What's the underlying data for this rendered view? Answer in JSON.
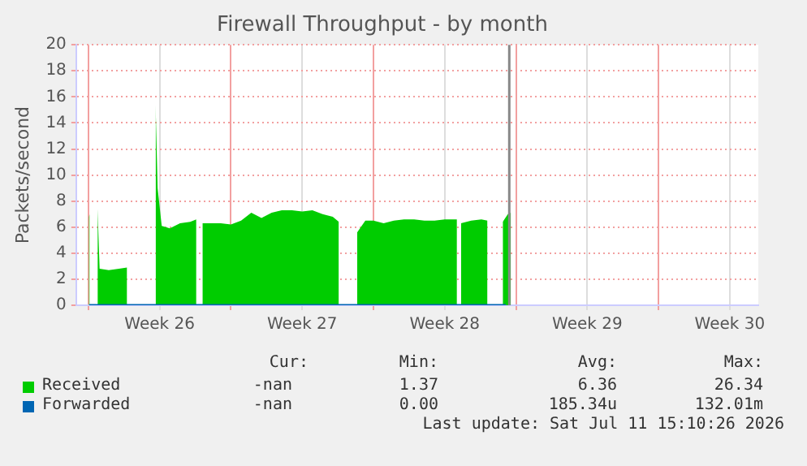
{
  "chart_data": {
    "type": "area",
    "title": "Firewall Throughput - by month",
    "ylabel": "Packets/second",
    "xlim": [
      "2026-06-21T09:36",
      "2026-07-24T21:36"
    ],
    "xticks": [
      {
        "value": "2026-06-22",
        "label": null
      },
      {
        "value": "2026-06-25T12:00",
        "label": "Week 26"
      },
      {
        "value": "2026-06-29",
        "label": null
      },
      {
        "value": "2026-07-02T12:00",
        "label": "Week 27"
      },
      {
        "value": "2026-07-06",
        "label": null
      },
      {
        "value": "2026-07-09T12:00",
        "label": "Week 28"
      },
      {
        "value": "2026-07-13",
        "label": null
      },
      {
        "value": "2026-07-16T12:00",
        "label": "Week 29"
      },
      {
        "value": "2026-07-20",
        "label": null
      },
      {
        "value": "2026-07-23T12:00",
        "label": "Week 30"
      }
    ],
    "ylim": [
      0,
      20
    ],
    "yticks": [
      0,
      2,
      4,
      6,
      8,
      10,
      12,
      14,
      16,
      18,
      20
    ],
    "grid": true,
    "legend": "bottom",
    "marker": "none",
    "ref_lines": [
      {
        "axis": "x",
        "value": "2026-07-12T16:05",
        "color": "#888888"
      }
    ],
    "series": [
      {
        "name": "Received",
        "color": "#00cc00",
        "x": [
          "2026-06-22T00:30",
          "2026-06-22T01:30",
          "2026-06-22T02:24",
          "2026-06-22T10:48",
          "2026-06-22T13:12",
          "2026-06-23T00:00",
          "2026-06-23T12:00",
          "2026-06-23T21:36",
          "2026-06-24T00:00",
          "2026-06-25T07:12",
          "2026-06-25T09:36",
          "2026-06-25T14:24",
          "2026-06-26T00:00",
          "2026-06-26T12:00",
          "2026-06-27T00:00",
          "2026-06-27T07:12",
          "2026-06-27T10:48",
          "2026-06-27T14:24",
          "2026-06-28T12:00",
          "2026-06-29T00:00",
          "2026-06-29T12:00",
          "2026-06-30T00:00",
          "2026-06-30T12:00",
          "2026-07-01T00:00",
          "2026-07-01T12:00",
          "2026-07-02T00:00",
          "2026-07-02T12:00",
          "2026-07-03T00:00",
          "2026-07-03T12:00",
          "2026-07-04T00:00",
          "2026-07-04T07:12",
          "2026-07-04T14:24",
          "2026-07-05T04:48",
          "2026-07-05T14:24",
          "2026-07-06T00:00",
          "2026-07-06T12:00",
          "2026-07-07T00:00",
          "2026-07-07T12:00",
          "2026-07-08T00:00",
          "2026-07-08T12:00",
          "2026-07-09T00:00",
          "2026-07-09T12:00",
          "2026-07-10T02:24",
          "2026-07-10T04:48",
          "2026-07-10T07:12",
          "2026-07-10T19:12",
          "2026-07-11T07:12",
          "2026-07-11T14:24",
          "2026-07-11T21:36",
          "2026-07-12T08:24",
          "2026-07-12T14:24",
          "2026-07-12T18:00"
        ],
        "values": [
          6.8,
          7.0,
          null,
          7.4,
          2.8,
          2.7,
          2.8,
          2.9,
          null,
          15.4,
          9,
          6.1,
          5.9,
          6.3,
          6.4,
          6.6,
          null,
          6.3,
          6.3,
          6.2,
          6.5,
          7.1,
          6.7,
          7.1,
          7.3,
          7.3,
          7.2,
          7.3,
          7.0,
          6.8,
          6.4,
          null,
          5.6,
          6.5,
          6.5,
          6.3,
          6.5,
          6.6,
          6.6,
          6.5,
          6.5,
          6.6,
          6.6,
          null,
          6.3,
          6.5,
          6.6,
          6.5,
          null,
          6.4,
          7.0,
          7.1
        ]
      },
      {
        "name": "Forwarded",
        "type": "line",
        "color": "#0066b3",
        "x": [
          "2026-06-22T01:00",
          "2026-07-12T12:00"
        ],
        "values": [
          0,
          0
        ]
      }
    ],
    "annotations": [
      "Cur:",
      "Min:",
      "Avg:",
      "Max:",
      "-nan",
      "1.37",
      "6.36",
      "26.34",
      "-nan",
      "0.00",
      "185.34u",
      "132.01m",
      "Last update: Sat Jul 11 15:10:26 2026"
    ]
  }
}
